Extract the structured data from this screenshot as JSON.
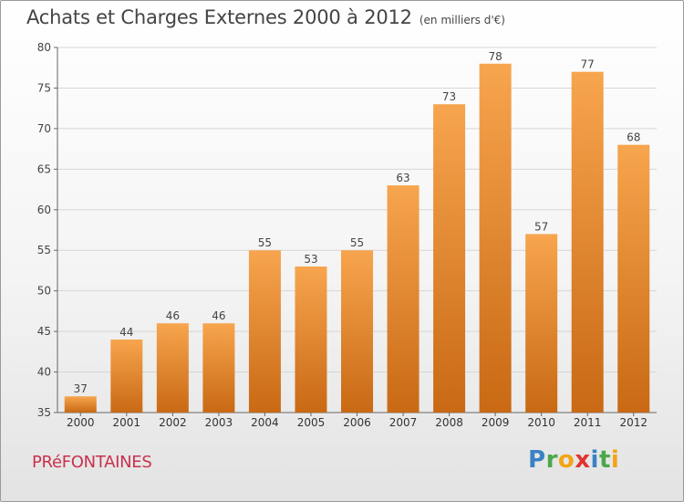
{
  "chart_data": {
    "type": "bar",
    "title": "Achats et Charges Externes 2000 à 2012",
    "unit_label": "(en milliers d'€)",
    "categories": [
      "2000",
      "2001",
      "2002",
      "2003",
      "2004",
      "2005",
      "2006",
      "2007",
      "2008",
      "2009",
      "2010",
      "2011",
      "2012"
    ],
    "values": [
      37,
      44,
      46,
      46,
      55,
      53,
      55,
      63,
      73,
      78,
      57,
      77,
      68
    ],
    "ylim": [
      35,
      80
    ],
    "yticks": [
      35,
      40,
      45,
      50,
      55,
      60,
      65,
      70,
      75,
      80
    ],
    "grid": true,
    "bar_color_top": "#f7a54e",
    "bar_color_bottom": "#c96914"
  },
  "footer": {
    "city": "PRéFONTAINES",
    "logo_letters": [
      "P",
      "r",
      "o",
      "x",
      "i",
      "t",
      "i"
    ],
    "logo_colors": [
      "#3b82c4",
      "#4aa84a",
      "#f2a516",
      "#e2342d",
      "#3b82c4",
      "#4aa84a",
      "#f2a516"
    ]
  }
}
